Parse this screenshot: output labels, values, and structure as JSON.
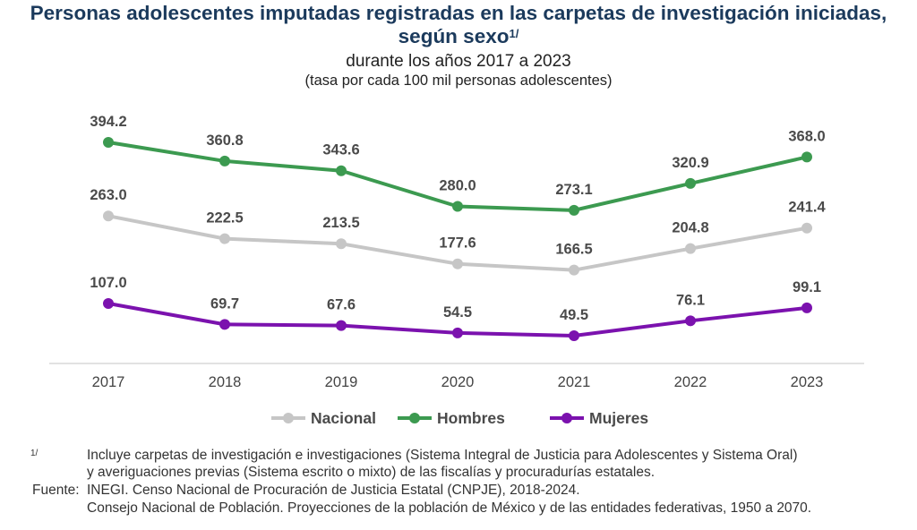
{
  "title_line1": "Personas adolescentes imputadas registradas en las carpetas de investigación iniciadas,",
  "title_line2": "según sexo",
  "title_note": "1/",
  "subtitle": "durante los años 2017 a 2023",
  "subtitle2": "(tasa por cada 100 mil personas adolescentes)",
  "chart_data": {
    "type": "line",
    "categories": [
      "2017",
      "2018",
      "2019",
      "2020",
      "2021",
      "2022",
      "2023"
    ],
    "series": [
      {
        "name": "Nacional",
        "color": "#c6c6c6",
        "values": [
          263.0,
          222.5,
          213.5,
          177.6,
          166.5,
          204.8,
          241.4
        ]
      },
      {
        "name": "Hombres",
        "color": "#3c9a50",
        "values": [
          394.2,
          360.8,
          343.6,
          280.0,
          273.1,
          320.9,
          368.0
        ]
      },
      {
        "name": "Mujeres",
        "color": "#7b12ae",
        "values": [
          107.0,
          69.7,
          67.6,
          54.5,
          49.5,
          76.1,
          99.1
        ]
      }
    ],
    "data_labels": true,
    "grid": false,
    "legend": "bottom",
    "ylim": [
      0,
      400
    ]
  },
  "footnotes": {
    "note_mark": "1/",
    "note_line1": "Incluye carpetas de investigación e investigaciones (Sistema Integral de Justicia para Adolescentes y Sistema Oral)",
    "note_line2": "y averiguaciones previas (Sistema escrito o mixto) de las fiscalías y procuradurías estatales.",
    "source_label": "Fuente:",
    "source_line1": "INEGI. Censo Nacional de Procuración de Justicia Estatal (CNPJE), 2018-2024.",
    "source_line2": "Consejo Nacional de Población. Proyecciones de la población de México y de las entidades federativas, 1950 a 2070."
  }
}
